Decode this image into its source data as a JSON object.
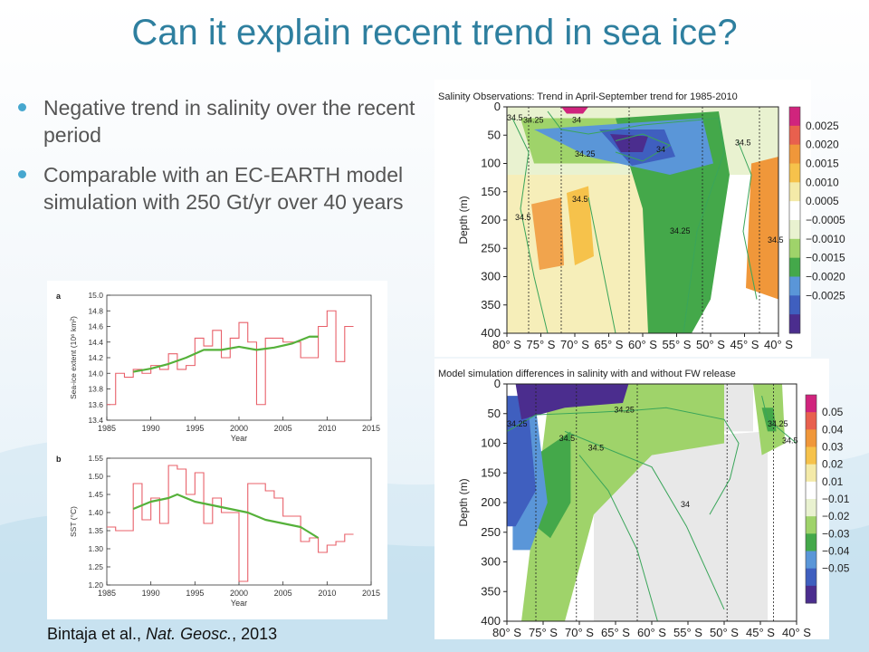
{
  "slide": {
    "title": "Can it explain recent trend in sea ice?",
    "bullets": [
      "Negative trend in salinity over the recent period",
      "Comparable with an EC-EARTH model simulation with 250 Gt/yr over 40 years"
    ],
    "citation": {
      "authors": "Bintaja et al., ",
      "journal": "Nat. Geosc.",
      "year": ", 2013"
    }
  },
  "colors": {
    "title": "#2e7f9f",
    "bullet_dot": "#46a7cf",
    "obs_line": "#e8606a",
    "smooth_line": "#55b13a"
  },
  "chart_data": [
    {
      "type": "line",
      "panel_label": "a",
      "xlabel": "Year",
      "ylabel": "Sea-ice extent (10⁶ km²)",
      "xlim": [
        1985,
        2015
      ],
      "ylim": [
        13.4,
        15.0
      ],
      "xticks": [
        "1985",
        "1990",
        "1995",
        "2000",
        "2005",
        "2010",
        "2015"
      ],
      "yticks": [
        "13.4",
        "13.6",
        "13.8",
        "14.0",
        "14.2",
        "14.4",
        "14.6",
        "14.8",
        "15.0"
      ],
      "series": [
        {
          "style": "step",
          "x": [
            1985,
            1986,
            1987,
            1988,
            1989,
            1990,
            1991,
            1992,
            1993,
            1994,
            1995,
            1996,
            1997,
            1998,
            1999,
            2000,
            2001,
            2002,
            2003,
            2004,
            2005,
            2006,
            2007,
            2008,
            2009,
            2010,
            2011,
            2012
          ],
          "values": [
            13.6,
            14.0,
            13.95,
            14.05,
            14.0,
            14.1,
            14.05,
            14.25,
            14.05,
            14.1,
            14.45,
            14.35,
            14.55,
            14.2,
            14.45,
            14.65,
            14.4,
            13.6,
            14.45,
            14.45,
            14.4,
            14.4,
            14.2,
            14.2,
            14.6,
            14.8,
            14.15,
            14.6
          ]
        },
        {
          "style": "smooth",
          "x": [
            1988,
            1990,
            1992,
            1994,
            1996,
            1998,
            2000,
            2002,
            2004,
            2006,
            2008,
            2009
          ],
          "values": [
            14.02,
            14.06,
            14.12,
            14.2,
            14.3,
            14.3,
            14.34,
            14.3,
            14.33,
            14.38,
            14.47,
            14.47
          ]
        }
      ]
    },
    {
      "type": "line",
      "panel_label": "b",
      "xlabel": "Year",
      "ylabel": "SST (°C)",
      "xlim": [
        1985,
        2015
      ],
      "ylim": [
        1.2,
        1.55
      ],
      "xticks": [
        "1985",
        "1990",
        "1995",
        "2000",
        "2005",
        "2010",
        "2015"
      ],
      "yticks": [
        "1.20",
        "1.25",
        "1.30",
        "1.35",
        "1.40",
        "1.45",
        "1.50",
        "1.55"
      ],
      "series": [
        {
          "style": "step",
          "x": [
            1985,
            1986,
            1987,
            1988,
            1989,
            1990,
            1991,
            1992,
            1993,
            1994,
            1995,
            1996,
            1997,
            1998,
            1999,
            2000,
            2001,
            2002,
            2003,
            2004,
            2005,
            2006,
            2007,
            2008,
            2009,
            2010,
            2011,
            2012
          ],
          "values": [
            1.36,
            1.35,
            1.35,
            1.48,
            1.38,
            1.44,
            1.37,
            1.53,
            1.52,
            1.45,
            1.51,
            1.37,
            1.44,
            1.4,
            1.4,
            1.21,
            1.48,
            1.48,
            1.46,
            1.44,
            1.39,
            1.39,
            1.32,
            1.33,
            1.29,
            1.31,
            1.32,
            1.34
          ]
        },
        {
          "style": "smooth",
          "x": [
            1988,
            1990,
            1992,
            1993,
            1995,
            1997,
            1999,
            2001,
            2003,
            2005,
            2007,
            2009
          ],
          "values": [
            1.41,
            1.43,
            1.44,
            1.45,
            1.43,
            1.42,
            1.41,
            1.4,
            1.38,
            1.37,
            1.36,
            1.33
          ]
        }
      ]
    },
    {
      "type": "heatmap",
      "title": "Salinity Observations: Trend in April-September trend for 1985-2010",
      "ylabel": "Depth (m)",
      "xticks": [
        "80° S",
        "75° S",
        "70° S",
        "65° S",
        "60° S",
        "55° S",
        "50° S",
        "45° S",
        "40° S"
      ],
      "yticks": [
        "0",
        "50",
        "100",
        "150",
        "200",
        "250",
        "300",
        "350",
        "400"
      ],
      "colorbar": [
        "0.0025",
        "0.0020",
        "0.0015",
        "0.0010",
        "0.0005",
        "−0.0005",
        "−0.0010",
        "−0.0015",
        "−0.0020",
        "−0.0025"
      ],
      "contour_labels": [
        "34.5",
        "34.25",
        "34",
        "34.25",
        "34",
        "34.5",
        "34.5",
        "34.25",
        "34.5",
        "34.5"
      ]
    },
    {
      "type": "heatmap",
      "title": "Model simulation differences in salinity with  and without FW release",
      "ylabel": "Depth (m)",
      "xticks": [
        "80° S",
        "75° S",
        "70° S",
        "65° S",
        "60° S",
        "55° S",
        "50° S",
        "45° S",
        "40° S"
      ],
      "yticks": [
        "0",
        "50",
        "100",
        "150",
        "200",
        "250",
        "300",
        "350",
        "400"
      ],
      "colorbar": [
        "0.05",
        "0.04",
        "0.03",
        "0.02",
        "0.01",
        "−0.01",
        "−0.02",
        "−0.03",
        "−0.04",
        "−0.05"
      ],
      "contour_labels": [
        "34.25",
        "34.25",
        "34.5",
        "34.5",
        "34",
        "34.25",
        "34.5"
      ]
    }
  ]
}
